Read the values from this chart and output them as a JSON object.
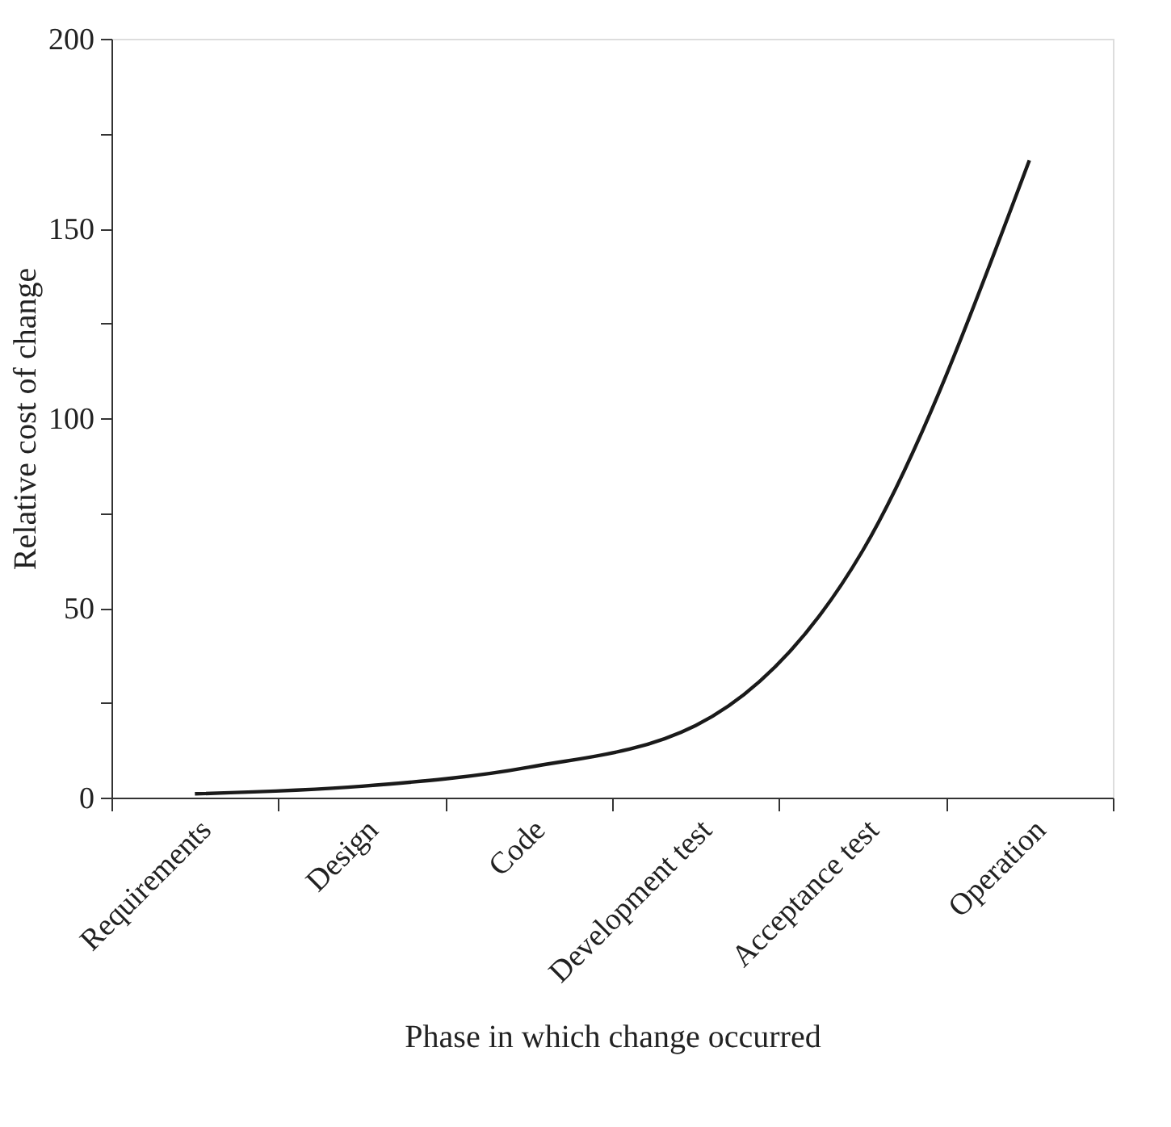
{
  "chart_data": {
    "type": "line",
    "xlabel": "Phase in which change occurred",
    "ylabel": "Relative cost of change",
    "categories": [
      "Requirements",
      "Design",
      "Code",
      "Development test",
      "Acceptance test",
      "Operation"
    ],
    "series": [
      {
        "color": "#1a1a1a",
        "values": [
          1,
          3,
          8,
          19,
          65,
          168
        ]
      }
    ],
    "ylim": [
      0,
      200
    ],
    "yticks": [
      0,
      {
        "value": 25,
        "label": null
      },
      50,
      {
        "value": 75,
        "label": null
      },
      100,
      {
        "value": 125,
        "label": null
      },
      150,
      {
        "value": 175,
        "label": null
      },
      200
    ],
    "grid": false,
    "marker": "none",
    "line_style": "solid"
  }
}
